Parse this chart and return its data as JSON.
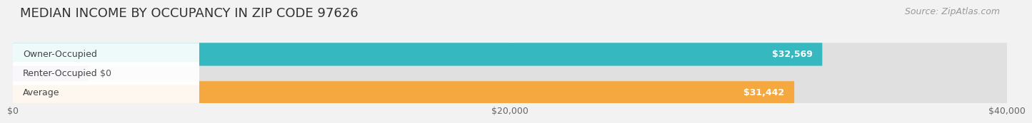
{
  "title": "MEDIAN INCOME BY OCCUPANCY IN ZIP CODE 97626",
  "source": "Source: ZipAtlas.com",
  "categories": [
    "Owner-Occupied",
    "Renter-Occupied",
    "Average"
  ],
  "values": [
    32569,
    0,
    31442
  ],
  "bar_colors": [
    "#35b8c0",
    "#c0a8d8",
    "#f5a840"
  ],
  "bar_labels": [
    "$32,569",
    "$0",
    "$31,442"
  ],
  "renter_bar_width": 3000,
  "xlim": [
    0,
    40000
  ],
  "xticks": [
    0,
    20000,
    40000
  ],
  "xtick_labels": [
    "$0",
    "$20,000",
    "$40,000"
  ],
  "bg_color": "#f2f2f2",
  "bar_bg_color": "#e0e0e0",
  "title_fontsize": 13,
  "source_fontsize": 9,
  "label_fontsize": 9,
  "value_fontsize": 9,
  "tick_fontsize": 9,
  "bar_height": 0.6,
  "bar_gap": 0.18
}
